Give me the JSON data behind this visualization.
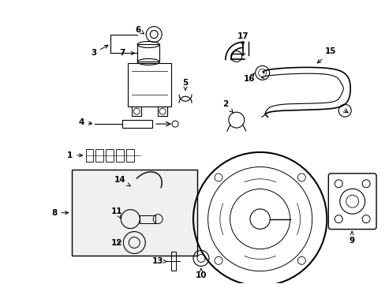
{
  "bg_color": "#ffffff",
  "fig_width": 4.89,
  "fig_height": 3.6,
  "dpi": 100,
  "label_fontsize": 7.5,
  "lw": 0.8
}
